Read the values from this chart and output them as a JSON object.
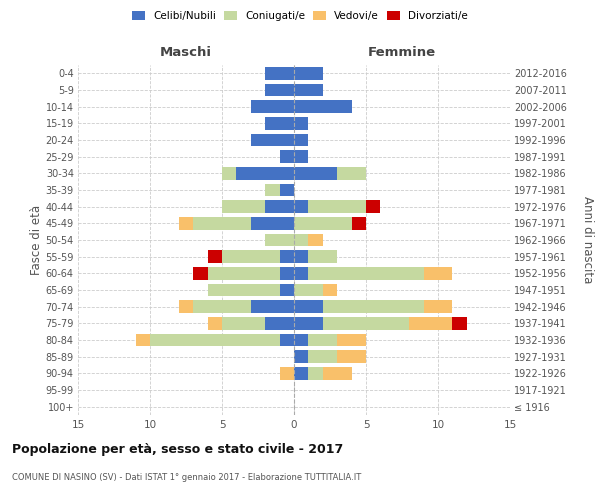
{
  "age_groups": [
    "100+",
    "95-99",
    "90-94",
    "85-89",
    "80-84",
    "75-79",
    "70-74",
    "65-69",
    "60-64",
    "55-59",
    "50-54",
    "45-49",
    "40-44",
    "35-39",
    "30-34",
    "25-29",
    "20-24",
    "15-19",
    "10-14",
    "5-9",
    "0-4"
  ],
  "birth_years": [
    "≤ 1916",
    "1917-1921",
    "1922-1926",
    "1927-1931",
    "1932-1936",
    "1937-1941",
    "1942-1946",
    "1947-1951",
    "1952-1956",
    "1957-1961",
    "1962-1966",
    "1967-1971",
    "1972-1976",
    "1977-1981",
    "1982-1986",
    "1987-1991",
    "1992-1996",
    "1997-2001",
    "2002-2006",
    "2007-2011",
    "2012-2016"
  ],
  "males": {
    "celibi": [
      0,
      0,
      0,
      0,
      1,
      2,
      3,
      1,
      1,
      1,
      0,
      3,
      2,
      1,
      4,
      1,
      3,
      2,
      3,
      2,
      2
    ],
    "coniugati": [
      0,
      0,
      0,
      0,
      9,
      3,
      4,
      5,
      5,
      4,
      2,
      4,
      3,
      1,
      1,
      0,
      0,
      0,
      0,
      0,
      0
    ],
    "vedovi": [
      0,
      0,
      1,
      0,
      1,
      1,
      1,
      0,
      0,
      0,
      0,
      1,
      0,
      0,
      0,
      0,
      0,
      0,
      0,
      0,
      0
    ],
    "divorziati": [
      0,
      0,
      0,
      0,
      0,
      0,
      0,
      0,
      1,
      1,
      0,
      0,
      0,
      0,
      0,
      0,
      0,
      0,
      0,
      0,
      0
    ]
  },
  "females": {
    "nubili": [
      0,
      0,
      1,
      1,
      1,
      2,
      2,
      0,
      1,
      1,
      0,
      0,
      1,
      0,
      3,
      1,
      1,
      1,
      4,
      2,
      2
    ],
    "coniugate": [
      0,
      0,
      1,
      2,
      2,
      6,
      7,
      2,
      8,
      2,
      1,
      4,
      4,
      0,
      2,
      0,
      0,
      0,
      0,
      0,
      0
    ],
    "vedove": [
      0,
      0,
      2,
      2,
      2,
      3,
      2,
      1,
      2,
      0,
      1,
      0,
      0,
      0,
      0,
      0,
      0,
      0,
      0,
      0,
      0
    ],
    "divorziate": [
      0,
      0,
      0,
      0,
      0,
      1,
      0,
      0,
      0,
      0,
      0,
      1,
      1,
      0,
      0,
      0,
      0,
      0,
      0,
      0,
      0
    ]
  },
  "colors": {
    "celibi": "#4472C4",
    "coniugati": "#C5D9A0",
    "vedovi": "#F9C06A",
    "divorziati": "#CC0000"
  },
  "xlim": 15,
  "title": "Popolazione per età, sesso e stato civile - 2017",
  "subtitle": "COMUNE DI NASINO (SV) - Dati ISTAT 1° gennaio 2017 - Elaborazione TUTTITALIA.IT",
  "ylabel_left": "Fasce di età",
  "ylabel_right": "Anni di nascita",
  "xlabel_maschi": "Maschi",
  "xlabel_femmine": "Femmine",
  "bg_color": "#ffffff",
  "grid_color": "#cccccc",
  "legend_labels": [
    "Celibi/Nubili",
    "Coniugati/e",
    "Vedovi/e",
    "Divorziati/e"
  ]
}
